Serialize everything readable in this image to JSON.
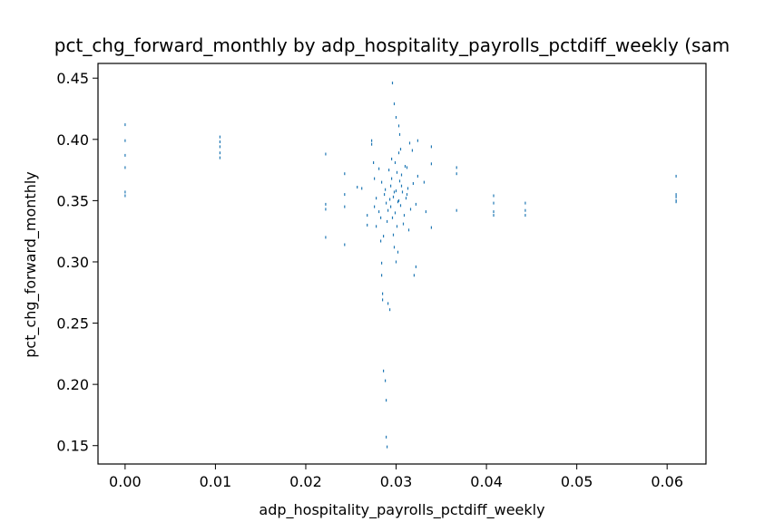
{
  "chart_data": {
    "type": "scatter",
    "title": "pct_chg_forward_monthly by adp_hospitality_payrolls_pctdiff_weekly (sam",
    "xlabel": "adp_hospitality_payrolls_pctdiff_weekly",
    "ylabel": "pct_chg_forward_monthly",
    "xlim": [
      -0.003,
      0.0643
    ],
    "ylim": [
      0.135,
      0.462
    ],
    "x_ticks": [
      0.0,
      0.01,
      0.02,
      0.03,
      0.04,
      0.05,
      0.06
    ],
    "x_tick_labels": [
      "0.00",
      "0.01",
      "0.02",
      "0.03",
      "0.04",
      "0.05",
      "0.06"
    ],
    "y_ticks": [
      0.15,
      0.2,
      0.25,
      0.3,
      0.35,
      0.4,
      0.45
    ],
    "y_tick_labels": [
      "0.15",
      "0.20",
      "0.25",
      "0.30",
      "0.35",
      "0.40",
      "0.45"
    ],
    "grid": false,
    "marker_color": "#1f77b4",
    "series": [
      {
        "points": [
          [
            0.0,
            0.412
          ],
          [
            0.0,
            0.399
          ],
          [
            0.0,
            0.387
          ],
          [
            0.0,
            0.377
          ],
          [
            0.0,
            0.357
          ],
          [
            0.0,
            0.354
          ],
          [
            0.0105,
            0.402
          ],
          [
            0.0105,
            0.398
          ],
          [
            0.0105,
            0.394
          ],
          [
            0.0105,
            0.389
          ],
          [
            0.0105,
            0.385
          ],
          [
            0.0222,
            0.388
          ],
          [
            0.0222,
            0.347
          ],
          [
            0.0222,
            0.343
          ],
          [
            0.0222,
            0.32
          ],
          [
            0.0243,
            0.372
          ],
          [
            0.0243,
            0.355
          ],
          [
            0.0243,
            0.345
          ],
          [
            0.0243,
            0.314
          ],
          [
            0.0257,
            0.361
          ],
          [
            0.0262,
            0.36
          ],
          [
            0.0268,
            0.338
          ],
          [
            0.0268,
            0.33
          ],
          [
            0.0273,
            0.399
          ],
          [
            0.0273,
            0.396
          ],
          [
            0.0275,
            0.381
          ],
          [
            0.0276,
            0.345
          ],
          [
            0.0278,
            0.329
          ],
          [
            0.0281,
            0.376
          ],
          [
            0.0283,
            0.336
          ],
          [
            0.0283,
            0.317
          ],
          [
            0.0284,
            0.299
          ],
          [
            0.0284,
            0.289
          ],
          [
            0.0285,
            0.274
          ],
          [
            0.0285,
            0.269
          ],
          [
            0.0286,
            0.211
          ],
          [
            0.0288,
            0.203
          ],
          [
            0.0289,
            0.187
          ],
          [
            0.0289,
            0.157
          ],
          [
            0.029,
            0.149
          ],
          [
            0.0291,
            0.266
          ],
          [
            0.0293,
            0.261
          ],
          [
            0.0296,
            0.446
          ],
          [
            0.0298,
            0.429
          ],
          [
            0.03,
            0.418
          ],
          [
            0.0303,
            0.411
          ],
          [
            0.0304,
            0.404
          ],
          [
            0.0312,
            0.377
          ],
          [
            0.0315,
            0.397
          ],
          [
            0.0318,
            0.391
          ],
          [
            0.032,
            0.289
          ],
          [
            0.0322,
            0.296
          ],
          [
            0.0324,
            0.399
          ],
          [
            0.0331,
            0.365
          ],
          [
            0.0333,
            0.341
          ],
          [
            0.0339,
            0.328
          ],
          [
            0.0339,
            0.394
          ],
          [
            0.0339,
            0.38
          ],
          [
            0.0367,
            0.377
          ],
          [
            0.0367,
            0.372
          ],
          [
            0.0367,
            0.342
          ],
          [
            0.0408,
            0.354
          ],
          [
            0.0408,
            0.348
          ],
          [
            0.0408,
            0.341
          ],
          [
            0.0408,
            0.338
          ],
          [
            0.0443,
            0.348
          ],
          [
            0.0443,
            0.342
          ],
          [
            0.0443,
            0.338
          ],
          [
            0.061,
            0.37
          ],
          [
            0.061,
            0.355
          ],
          [
            0.061,
            0.353
          ],
          [
            0.061,
            0.35
          ],
          [
            0.061,
            0.349
          ],
          [
            0.0298,
            0.357
          ],
          [
            0.0302,
            0.349
          ],
          [
            0.0294,
            0.362
          ],
          [
            0.0306,
            0.371
          ],
          [
            0.0291,
            0.342
          ],
          [
            0.0309,
            0.338
          ],
          [
            0.0287,
            0.355
          ],
          [
            0.0313,
            0.36
          ],
          [
            0.0299,
            0.381
          ],
          [
            0.0301,
            0.329
          ],
          [
            0.0295,
            0.368
          ],
          [
            0.0305,
            0.346
          ],
          [
            0.0297,
            0.322
          ],
          [
            0.0303,
            0.389
          ],
          [
            0.0289,
            0.348
          ],
          [
            0.0311,
            0.352
          ],
          [
            0.0284,
            0.365
          ],
          [
            0.0316,
            0.343
          ],
          [
            0.0292,
            0.375
          ],
          [
            0.0308,
            0.331
          ],
          [
            0.03,
            0.358
          ],
          [
            0.0296,
            0.336
          ],
          [
            0.0304,
            0.366
          ],
          [
            0.0293,
            0.351
          ],
          [
            0.0307,
            0.357
          ],
          [
            0.0281,
            0.341
          ],
          [
            0.0319,
            0.364
          ],
          [
            0.0298,
            0.312
          ],
          [
            0.0302,
            0.308
          ],
          [
            0.0286,
            0.321
          ],
          [
            0.0314,
            0.326
          ],
          [
            0.0295,
            0.384
          ],
          [
            0.0305,
            0.392
          ],
          [
            0.0278,
            0.352
          ],
          [
            0.0322,
            0.347
          ],
          [
            0.03,
            0.3
          ],
          [
            0.0288,
            0.359
          ],
          [
            0.0312,
            0.355
          ],
          [
            0.0294,
            0.345
          ],
          [
            0.0306,
            0.362
          ],
          [
            0.0297,
            0.353
          ],
          [
            0.0303,
            0.35
          ],
          [
            0.0276,
            0.368
          ],
          [
            0.0324,
            0.37
          ],
          [
            0.0299,
            0.34
          ],
          [
            0.0301,
            0.373
          ],
          [
            0.029,
            0.333
          ],
          [
            0.031,
            0.378
          ]
        ]
      }
    ]
  }
}
